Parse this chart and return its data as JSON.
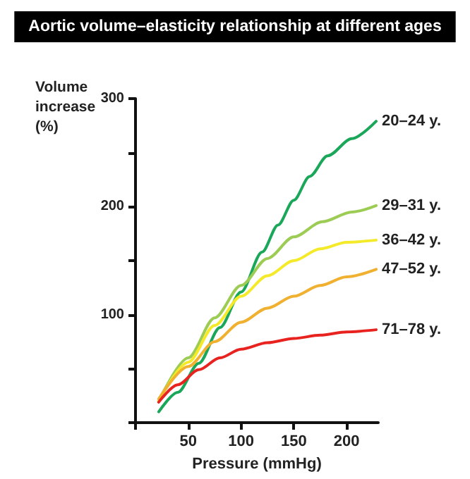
{
  "chart_data": {
    "type": "line",
    "title": "Aortic volume–elasticity relationship at different ages",
    "xlabel": "Pressure (mmHg)",
    "ylabel": "Volume increase (%)",
    "xlim": [
      0,
      230
    ],
    "xticks": [
      {
        "value": 0,
        "label": null
      },
      50,
      100,
      150,
      200
    ],
    "ylim": [
      0,
      300
    ],
    "yticks": [
      {
        "value": 0,
        "label": null
      },
      {
        "value": 50,
        "label": null
      },
      100,
      {
        "value": 150,
        "label": null
      },
      200,
      {
        "value": 250,
        "label": null
      },
      300
    ],
    "grid": false,
    "legend": false,
    "marker": "none",
    "line_style": "solid",
    "series": [
      {
        "name": "20–24 y.",
        "color": "#1aa75a",
        "x": [
          22,
          40,
          60,
          80,
          100,
          120,
          135,
          150,
          165,
          182,
          205,
          228
        ],
        "values": [
          10,
          28,
          55,
          88,
          121,
          158,
          183,
          206,
          228,
          247,
          263,
          279
        ]
      },
      {
        "name": "29–31 y.",
        "color": "#9ccc54",
        "x": [
          22,
          50,
          75,
          100,
          125,
          150,
          177,
          205,
          228
        ],
        "values": [
          20,
          60,
          97,
          127,
          152,
          172,
          186,
          195,
          201
        ]
      },
      {
        "name": "36–42 y.",
        "color": "#f4ea2a",
        "x": [
          22,
          50,
          75,
          100,
          125,
          150,
          175,
          200,
          228
        ],
        "values": [
          20,
          56,
          90,
          117,
          136,
          150,
          161,
          167,
          169
        ]
      },
      {
        "name": "47–52 y.",
        "color": "#f0b030",
        "x": [
          22,
          50,
          75,
          100,
          125,
          150,
          175,
          200,
          228
        ],
        "values": [
          22,
          52,
          75,
          93,
          106,
          117,
          127,
          135,
          142
        ]
      },
      {
        "name": "71–78 y.",
        "color": "#e8231f",
        "x": [
          22,
          40,
          60,
          80,
          100,
          125,
          150,
          175,
          200,
          228
        ],
        "values": [
          19,
          35,
          49,
          60,
          68,
          74,
          78,
          81,
          84,
          86
        ]
      }
    ]
  }
}
